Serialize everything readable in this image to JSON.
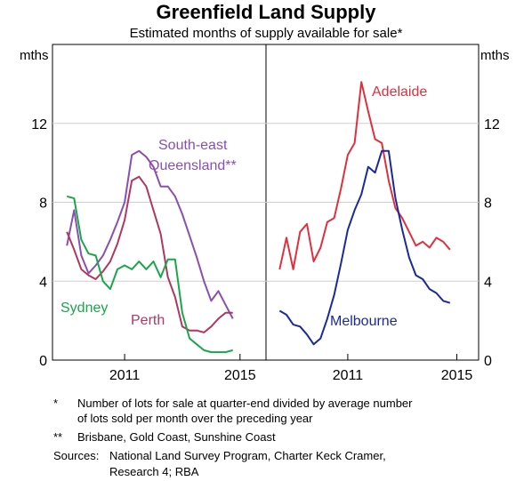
{
  "title": "Greenfield Land Supply",
  "subtitle": "Estimated months of supply available for sale*",
  "unit_label": "mths",
  "chart_data": [
    {
      "type": "line",
      "panel": "left",
      "x_ticks": [
        2011,
        2015
      ],
      "ylim": [
        0,
        16
      ],
      "y_ticks": [
        0,
        4,
        8,
        12
      ],
      "series": [
        {
          "name": "South-east Queensland**",
          "color": "#8a4fb0",
          "x": [
            2009.0,
            2009.25,
            2009.5,
            2009.75,
            2010.0,
            2010.25,
            2010.5,
            2010.75,
            2011.0,
            2011.25,
            2011.5,
            2011.75,
            2012.0,
            2012.25,
            2012.5,
            2012.75,
            2013.0,
            2013.25,
            2013.5,
            2013.75,
            2014.0,
            2014.25,
            2014.5,
            2014.75
          ],
          "y": [
            5.8,
            7.6,
            5.3,
            4.4,
            4.8,
            5.3,
            6.1,
            7.0,
            8.0,
            10.4,
            10.6,
            10.3,
            9.8,
            8.8,
            8.8,
            8.3,
            7.4,
            6.3,
            5.2,
            4.0,
            3.0,
            3.5,
            2.8,
            2.1
          ]
        },
        {
          "name": "Perth",
          "color": "#b0375e",
          "x": [
            2009.0,
            2009.25,
            2009.5,
            2009.75,
            2010.0,
            2010.25,
            2010.5,
            2010.75,
            2011.0,
            2011.25,
            2011.5,
            2011.75,
            2012.0,
            2012.25,
            2012.5,
            2012.75,
            2013.0,
            2013.25,
            2013.5,
            2013.75,
            2014.0,
            2014.25,
            2014.5,
            2014.75
          ],
          "y": [
            6.5,
            5.6,
            4.6,
            4.3,
            4.1,
            4.5,
            5.0,
            5.9,
            7.1,
            9.1,
            9.3,
            8.8,
            7.6,
            6.4,
            4.2,
            3.2,
            1.7,
            1.5,
            1.5,
            1.4,
            1.7,
            2.1,
            2.4,
            2.4
          ]
        },
        {
          "name": "Sydney",
          "color": "#1aa64a",
          "x": [
            2009.0,
            2009.25,
            2009.5,
            2009.75,
            2010.0,
            2010.25,
            2010.5,
            2010.75,
            2011.0,
            2011.25,
            2011.5,
            2011.75,
            2012.0,
            2012.25,
            2012.5,
            2012.75,
            2013.0,
            2013.25,
            2013.5,
            2013.75,
            2014.0,
            2014.25,
            2014.5,
            2014.75
          ],
          "y": [
            8.3,
            8.2,
            6.1,
            5.4,
            5.3,
            4.0,
            3.6,
            4.6,
            4.8,
            4.6,
            5.0,
            4.6,
            5.0,
            4.2,
            5.1,
            5.1,
            2.4,
            1.1,
            0.8,
            0.5,
            0.4,
            0.4,
            0.4,
            0.5
          ]
        }
      ]
    },
    {
      "type": "line",
      "panel": "right",
      "x_ticks": [
        2011,
        2015
      ],
      "ylim": [
        0,
        16
      ],
      "y_ticks": [
        0,
        4,
        8,
        12
      ],
      "series": [
        {
          "name": "Adelaide",
          "color": "#e0303d",
          "x": [
            2008.5,
            2008.75,
            2009.0,
            2009.25,
            2009.5,
            2009.75,
            2010.0,
            2010.25,
            2010.5,
            2010.75,
            2011.0,
            2011.25,
            2011.5,
            2011.75,
            2012.0,
            2012.25,
            2012.5,
            2012.75,
            2013.0,
            2013.25,
            2013.5,
            2013.75,
            2014.0,
            2014.25,
            2014.5,
            2014.75
          ],
          "y": [
            4.6,
            6.2,
            4.6,
            6.5,
            6.9,
            5.0,
            5.7,
            7.0,
            7.2,
            8.7,
            10.4,
            11.0,
            14.1,
            12.6,
            11.2,
            11.0,
            9.1,
            7.7,
            7.2,
            6.5,
            5.8,
            6.0,
            5.7,
            6.2,
            6.0,
            5.6
          ]
        },
        {
          "name": "Melbourne",
          "color": "#1a2a9a",
          "x": [
            2008.5,
            2008.75,
            2009.0,
            2009.25,
            2009.5,
            2009.75,
            2010.0,
            2010.25,
            2010.5,
            2010.75,
            2011.0,
            2011.25,
            2011.5,
            2011.75,
            2012.0,
            2012.25,
            2012.5,
            2012.75,
            2013.0,
            2013.25,
            2013.5,
            2013.75,
            2014.0,
            2014.25,
            2014.5,
            2014.75
          ],
          "y": [
            2.5,
            2.3,
            1.8,
            1.7,
            1.3,
            0.8,
            1.1,
            2.1,
            3.3,
            4.9,
            6.6,
            7.6,
            8.4,
            9.8,
            9.5,
            10.6,
            10.6,
            8.2,
            6.6,
            5.2,
            4.3,
            4.1,
            3.6,
            3.4,
            3.0,
            2.9
          ]
        }
      ]
    }
  ],
  "series_labels": {
    "seq_line1": "South-east",
    "seq_line2": "Queensland**",
    "perth": "Perth",
    "sydney": "Sydney",
    "adelaide": "Adelaide",
    "melbourne": "Melbourne"
  },
  "notes": {
    "n1_marker": "*",
    "n1_line1": "Number of lots for sale at quarter-end divided by average number",
    "n1_line2": "of lots sold per month over the preceding year",
    "n2_marker": "**",
    "n2_text": "Brisbane, Gold Coast, Sunshine Coast",
    "sources_marker": "Sources:",
    "sources_line1": "National Land Survey Program, Charter Keck Cramer,",
    "sources_line2": "Research 4; RBA"
  }
}
